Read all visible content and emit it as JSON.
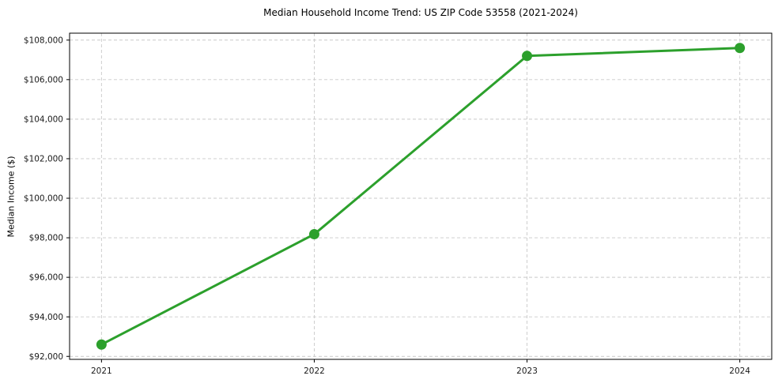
{
  "figure": {
    "background": "#ffffff"
  },
  "chart_data": {
    "type": "line",
    "title": "Median Household Income Trend: US ZIP Code 53558 (2021-2024)",
    "xlabel": "",
    "ylabel": "Median Income ($)",
    "x": [
      2021,
      2022,
      2023,
      2024
    ],
    "xtick_labels": [
      "2021",
      "2022",
      "2023",
      "2024"
    ],
    "series": [
      {
        "name": "median_household_income",
        "values": [
          92600,
          98180,
          107200,
          107600
        ],
        "color": "#2ca02c",
        "line_width": 3,
        "marker": "circle",
        "marker_radius": 6.5
      }
    ],
    "xlim": [
      2020.85,
      2024.15
    ],
    "ylim": [
      91850,
      108350
    ],
    "yticks": [
      92000,
      94000,
      96000,
      98000,
      100000,
      102000,
      104000,
      106000,
      108000
    ],
    "ytick_labels": [
      "$92,000",
      "$94,000",
      "$96,000",
      "$98,000",
      "$100,000",
      "$102,000",
      "$104,000",
      "$106,000",
      "$108,000"
    ],
    "grid": true,
    "grid_color": "#c9c9c9",
    "grid_dash": "4 3",
    "grid_line_width": 0.9,
    "axis_color": "#000000",
    "tick_label_color": "#1a1a1a",
    "tick_font_size": 10.5,
    "legend": "none"
  }
}
